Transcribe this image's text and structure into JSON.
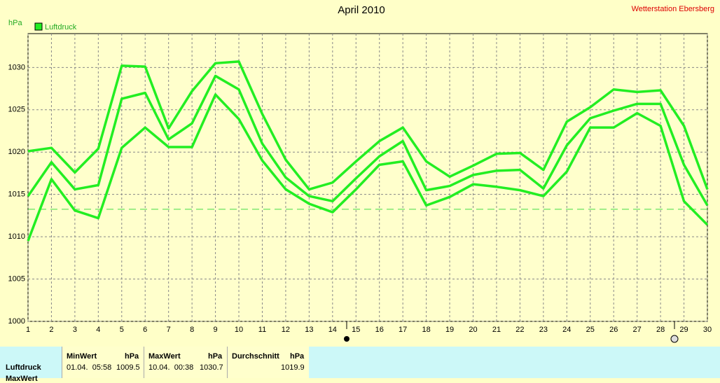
{
  "chart_data": {
    "type": "line",
    "title": "April 2010",
    "subtitle": "Wetterstation Ebersberg",
    "y_label": "hPa",
    "x": [
      1,
      2,
      3,
      4,
      5,
      6,
      7,
      8,
      9,
      10,
      11,
      12,
      13,
      14,
      15,
      16,
      17,
      18,
      19,
      20,
      21,
      22,
      23,
      24,
      25,
      26,
      27,
      28,
      29,
      30
    ],
    "xlim": [
      1,
      30
    ],
    "xticks": [
      1,
      2,
      3,
      4,
      5,
      6,
      7,
      8,
      9,
      10,
      11,
      12,
      13,
      14,
      15,
      16,
      17,
      18,
      19,
      20,
      21,
      22,
      23,
      24,
      25,
      26,
      27,
      28,
      29,
      30
    ],
    "ylim": [
      1000,
      1034
    ],
    "yticks": [
      1000,
      1005,
      1010,
      1015,
      1020,
      1025,
      1030
    ],
    "grid": true,
    "legend": "top-left",
    "reference_line": 1013.25,
    "series": [
      {
        "name": "Luftdruck",
        "color": "#22ee22",
        "values": [
          1014.8,
          1018.8,
          1015.6,
          1016.1,
          1026.3,
          1027.0,
          1021.5,
          1023.4,
          1029.0,
          1027.4,
          1021.0,
          1017.0,
          1014.8,
          1014.2,
          1016.9,
          1019.5,
          1021.3,
          1015.5,
          1016.0,
          1017.3,
          1017.8,
          1017.9,
          1015.7,
          1020.8,
          1024.0,
          1024.9,
          1025.7,
          1025.7,
          1018.5,
          1013.7
        ]
      },
      {
        "color": "#22ee22",
        "values": [
          1020.1,
          1020.5,
          1017.6,
          1020.4,
          1030.2,
          1030.1,
          1022.8,
          1027.2,
          1030.5,
          1030.7,
          1024.5,
          1019.1,
          1015.6,
          1016.4,
          1018.9,
          1021.3,
          1022.9,
          1018.9,
          1017.1,
          1018.4,
          1019.8,
          1019.9,
          1017.9,
          1023.6,
          1025.3,
          1027.4,
          1027.1,
          1027.3,
          1023.1,
          1015.6
        ]
      },
      {
        "color": "#22ee22",
        "values": [
          1009.5,
          1016.8,
          1013.1,
          1012.2,
          1020.5,
          1022.9,
          1020.6,
          1020.6,
          1026.8,
          1023.9,
          1019.0,
          1015.6,
          1013.9,
          1012.9,
          1015.6,
          1018.5,
          1018.9,
          1013.7,
          1014.7,
          1016.2,
          1015.9,
          1015.5,
          1014.8,
          1017.7,
          1022.9,
          1022.9,
          1024.6,
          1023.1,
          1014.2,
          1011.4
        ]
      }
    ]
  },
  "table": {
    "header": [
      "MinWert",
      "hPa",
      "MaxWert",
      "hPa",
      "Durchschnitt",
      "hPa"
    ],
    "rows": [
      [
        "Luftdruck",
        "01.04.  05:58",
        "1009.5",
        "10.04.  00:38",
        "1030.7",
        "1019.9"
      ],
      [
        "MaxWert"
      ]
    ]
  }
}
